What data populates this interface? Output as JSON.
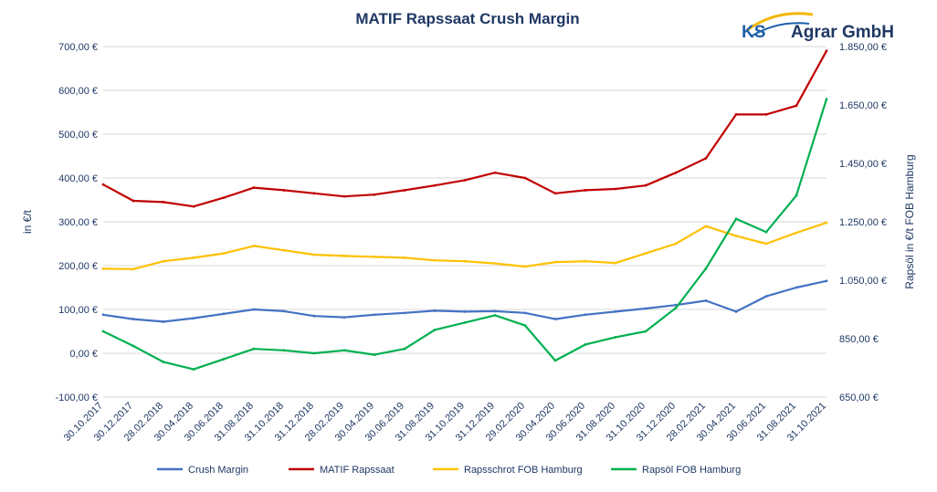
{
  "chart_data": {
    "type": "line",
    "title": "MATIF Rapssaat Crush Margin",
    "ylabel_left": "in €/t",
    "ylabel_right": "Rapsöl in €/t FOB Hamburg",
    "ylim_left": [
      -100,
      700
    ],
    "ylim_right": [
      650,
      1850
    ],
    "yticks_left": [
      "-100,00 €",
      "0,00 €",
      "100,00 €",
      "200,00 €",
      "300,00 €",
      "400,00 €",
      "500,00 €",
      "600,00 €",
      "700,00 €"
    ],
    "yticks_right": [
      "650,00 €",
      "850,00 €",
      "1.050,00 €",
      "1.250,00 €",
      "1.450,00 €",
      "1.650,00 €",
      "1.850,00 €"
    ],
    "xticks": [
      "30.10.2017",
      "30.12.2017",
      "28.02.2018",
      "30.04.2018",
      "30.06.2018",
      "31.08.2018",
      "31.10.2018",
      "31.12.2018",
      "28.02.2019",
      "30.04.2019",
      "30.06.2019",
      "31.08.2019",
      "31.10.2019",
      "31.12.2019",
      "29.02.2020",
      "30.04.2020",
      "30.06.2020",
      "31.08.2020",
      "31.10.2020",
      "31.12.2020",
      "28.02.2021",
      "30.04.2021",
      "30.06.2021",
      "31.08.2021",
      "31.10.2021"
    ],
    "grid": true,
    "legend_position": "bottom",
    "x": [
      "30.10.2017",
      "30.12.2017",
      "28.02.2018",
      "30.04.2018",
      "30.06.2018",
      "31.08.2018",
      "31.10.2018",
      "31.12.2018",
      "28.02.2019",
      "30.04.2019",
      "30.06.2019",
      "31.08.2019",
      "31.10.2019",
      "31.12.2019",
      "29.02.2020",
      "30.04.2020",
      "30.06.2020",
      "31.08.2020",
      "31.10.2020",
      "31.12.2020",
      "28.02.2021",
      "30.04.2021",
      "30.06.2021",
      "31.08.2021",
      "31.10.2021"
    ],
    "series": [
      {
        "name": "Crush Margin",
        "axis": "left",
        "color": "#4472c4",
        "values": [
          88,
          78,
          72,
          80,
          90,
          100,
          96,
          85,
          82,
          88,
          92,
          97,
          95,
          96,
          92,
          78,
          88,
          95,
          102,
          110,
          120,
          95,
          130,
          150,
          165
        ]
      },
      {
        "name": "MATIF Rapssaat",
        "axis": "left",
        "color": "#c00000",
        "values": [
          385,
          348,
          345,
          335,
          355,
          378,
          372,
          365,
          358,
          362,
          372,
          383,
          395,
          412,
          400,
          365,
          372,
          375,
          383,
          412,
          445,
          545,
          545,
          565,
          690
        ]
      },
      {
        "name": "Rapsschrot FOB Hamburg",
        "axis": "left",
        "color": "#ffc000",
        "values": [
          193,
          192,
          210,
          218,
          228,
          245,
          235,
          225,
          222,
          220,
          218,
          212,
          210,
          205,
          198,
          208,
          210,
          206,
          228,
          250,
          290,
          268,
          250,
          275,
          298
        ]
      },
      {
        "name": "Rapsöl FOB Hamburg",
        "axis": "right",
        "color": "#00b050",
        "values": [
          875,
          825,
          770,
          745,
          780,
          815,
          810,
          800,
          810,
          795,
          815,
          880,
          905,
          930,
          895,
          775,
          830,
          855,
          875,
          955,
          1090,
          1260,
          1215,
          1340,
          1670
        ]
      }
    ]
  },
  "logo": {
    "ks": "KS",
    "name": "Agrar GmbH"
  }
}
